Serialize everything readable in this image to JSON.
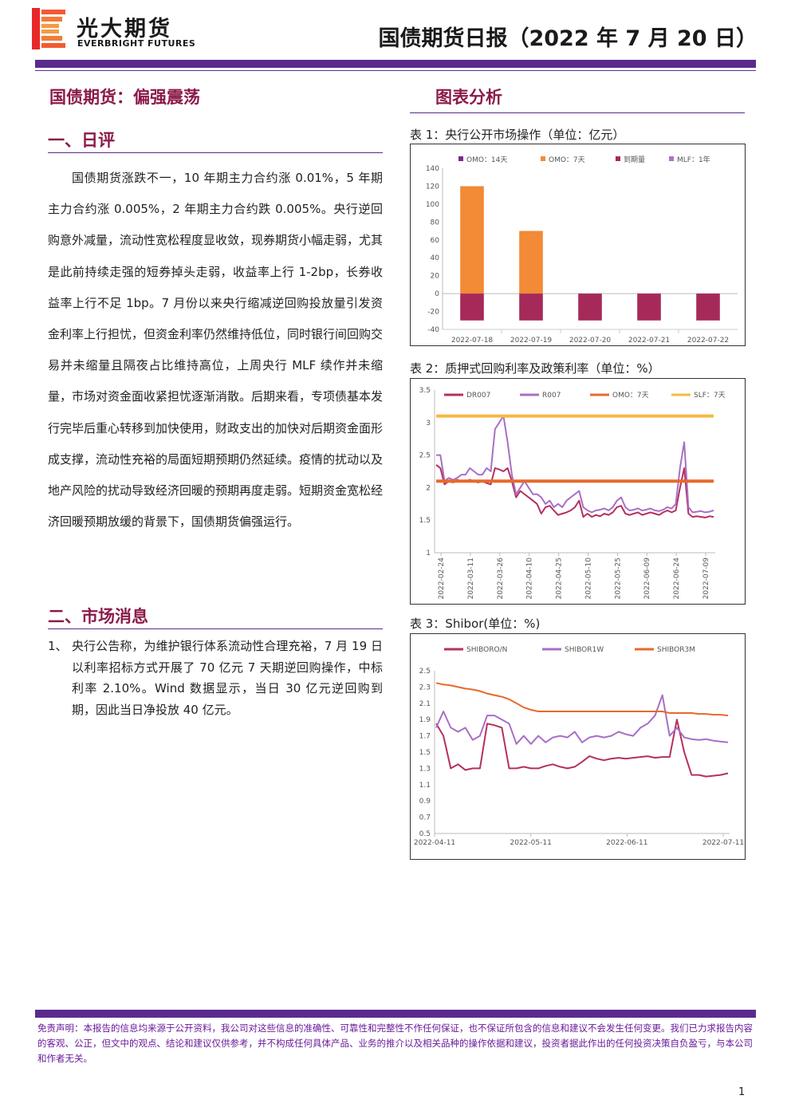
{
  "header": {
    "brand_cn": "光大期货",
    "brand_en": "EVERBRIGHT FUTURES",
    "report_title": "国债期货日报（2022 年 7 月 20 日）"
  },
  "left": {
    "headline": "国债期货：偏强震荡",
    "section1_title": "一、日评",
    "commentary": "国债期货涨跌不一，10 年期主力合约涨 0.01%，5 年期主力合约涨 0.005%，2 年期主力合约跌 0.005%。央行逆回购意外减量，流动性宽松程度显收敛，现券期货小幅走弱，尤其是此前持续走强的短券掉头走弱，收益率上行 1-2bp，长券收益率上行不足 1bp。7 月份以来央行缩减逆回购投放量引发资金利率上行担忧，但资金利率仍然维持低位，同时银行间回购交易并未缩量且隔夜占比维持高位，上周央行 MLF 续作并未缩量，市场对资金面收紧担忧逐渐消散。后期来看，专项债基本发行完毕后重心转移到加快使用，财政支出的加快对后期资金面形成支撑，流动性充裕的局面短期预期仍然延续。疫情的扰动以及地产风险的扰动导致经济回暖的预期再度走弱。短期资金宽松经济回暖预期放缓的背景下，国债期货偏强运行。",
    "section2_title": "二、市场消息",
    "news_num": "1、",
    "news_text": "央行公告称，为维护银行体系流动性合理充裕，7 月 19 日以利率招标方式开展了 70 亿元 7 天期逆回购操作，中标利率 2.10%。Wind 数据显示，当日 30 亿元逆回购到期，因此当日净投放 40 亿元。"
  },
  "right": {
    "title": "图表分析",
    "chart1_caption": "表 1：央行公开市场操作（单位：亿元）",
    "chart2_caption": "表 2：质押式回购利率及政策利率（单位：%）",
    "chart3_caption": "表 3：Shibor(单位：%)"
  },
  "chart_data": [
    {
      "type": "bar",
      "categories": [
        "2022-07-18",
        "2022-07-19",
        "2022-07-20",
        "2022-07-21",
        "2022-07-22"
      ],
      "series": [
        {
          "name": "OMO：14天",
          "color": "#7b2a8a",
          "values": [
            0,
            0,
            0,
            0,
            0
          ]
        },
        {
          "name": "OMO：7天",
          "color": "#f28a36",
          "values": [
            120,
            70,
            0,
            0,
            0
          ]
        },
        {
          "name": "到期量",
          "color": "#a52a5a",
          "values": [
            -30,
            -30,
            -30,
            -30,
            -30
          ]
        },
        {
          "name": "MLF：1年",
          "color": "#b06fc8",
          "values": [
            0,
            0,
            0,
            0,
            0
          ]
        }
      ],
      "ylim": [
        -40,
        140
      ],
      "yticks": [
        -40,
        -20,
        0,
        20,
        40,
        60,
        80,
        100,
        120,
        140
      ],
      "legend": "top"
    },
    {
      "type": "line",
      "x_ticks": [
        "2022-02-24",
        "2022-03-11",
        "2022-03-26",
        "2022-04-10",
        "2022-04-25",
        "2022-05-10",
        "2022-05-25",
        "2022-06-09",
        "2022-06-24",
        "2022-07-09"
      ],
      "ylim": [
        1,
        3.5
      ],
      "yticks": [
        1,
        1.5,
        2,
        2.5,
        3,
        3.5
      ],
      "series": [
        {
          "name": "DR007",
          "color": "#b5305f",
          "values": [
            2.35,
            2.3,
            2.05,
            2.1,
            2.08,
            2.12,
            2.1,
            2.1,
            2.12,
            2.1,
            2.08,
            2.1,
            2.07,
            2.05,
            2.3,
            2.28,
            2.25,
            2.3,
            2.1,
            1.85,
            1.95,
            1.9,
            1.85,
            1.8,
            1.75,
            1.6,
            1.7,
            1.72,
            1.65,
            1.58,
            1.6,
            1.62,
            1.65,
            1.7,
            1.8,
            1.55,
            1.6,
            1.55,
            1.58,
            1.56,
            1.6,
            1.58,
            1.62,
            1.7,
            1.72,
            1.6,
            1.58,
            1.6,
            1.62,
            1.58,
            1.6,
            1.62,
            1.6,
            1.58,
            1.62,
            1.65,
            1.62,
            1.65,
            2.0,
            2.3,
            1.6,
            1.55,
            1.56,
            1.55,
            1.54,
            1.56,
            1.55
          ]
        },
        {
          "name": "R007",
          "color": "#a86fc6",
          "values": [
            2.5,
            2.5,
            2.1,
            2.15,
            2.12,
            2.15,
            2.2,
            2.2,
            2.3,
            2.25,
            2.2,
            2.2,
            2.3,
            2.25,
            2.9,
            3.0,
            3.1,
            2.7,
            2.2,
            1.9,
            2.0,
            2.1,
            2.0,
            1.9,
            1.9,
            1.85,
            1.75,
            1.8,
            1.7,
            1.75,
            1.7,
            1.8,
            1.85,
            1.9,
            1.95,
            1.7,
            1.65,
            1.62,
            1.65,
            1.66,
            1.68,
            1.65,
            1.7,
            1.8,
            1.85,
            1.7,
            1.65,
            1.66,
            1.68,
            1.65,
            1.66,
            1.68,
            1.65,
            1.64,
            1.66,
            1.7,
            1.68,
            1.75,
            2.3,
            2.7,
            1.7,
            1.62,
            1.63,
            1.64,
            1.62,
            1.63,
            1.65
          ]
        },
        {
          "name": "OMO：7天",
          "color": "#e8692a",
          "values": [
            2.1,
            2.1
          ]
        },
        {
          "name": "SLF：7天",
          "color": "#f5b942",
          "values": [
            3.1,
            3.1
          ]
        }
      ],
      "legend": "top"
    },
    {
      "type": "line",
      "x_ticks": [
        "2022-04-11",
        "2022-05-11",
        "2022-06-11",
        "2022-07-11"
      ],
      "ylim": [
        0.5,
        2.5
      ],
      "yticks": [
        0.5,
        0.7,
        0.9,
        1.1,
        1.3,
        1.5,
        1.7,
        1.9,
        2.1,
        2.3,
        2.5
      ],
      "series": [
        {
          "name": "SHIBORO/N",
          "color": "#b5305f",
          "values": [
            1.85,
            1.7,
            1.3,
            1.35,
            1.28,
            1.3,
            1.3,
            1.85,
            1.83,
            1.8,
            1.3,
            1.3,
            1.32,
            1.3,
            1.3,
            1.33,
            1.35,
            1.32,
            1.3,
            1.32,
            1.38,
            1.45,
            1.42,
            1.4,
            1.42,
            1.43,
            1.42,
            1.43,
            1.44,
            1.45,
            1.43,
            1.44,
            1.44,
            1.9,
            1.5,
            1.22,
            1.22,
            1.2,
            1.21,
            1.22,
            1.24
          ]
        },
        {
          "name": "SHIBOR1W",
          "color": "#a86fc6",
          "values": [
            1.8,
            2.0,
            1.8,
            1.75,
            1.8,
            1.65,
            1.7,
            1.95,
            1.95,
            1.9,
            1.85,
            1.6,
            1.7,
            1.6,
            1.7,
            1.62,
            1.68,
            1.7,
            1.68,
            1.75,
            1.62,
            1.68,
            1.7,
            1.68,
            1.7,
            1.75,
            1.72,
            1.7,
            1.8,
            1.85,
            1.95,
            2.2,
            1.7,
            1.8,
            1.68,
            1.66,
            1.65,
            1.66,
            1.64,
            1.63,
            1.62
          ]
        },
        {
          "name": "SHIBOR3M",
          "color": "#e8692a",
          "values": [
            2.35,
            2.33,
            2.32,
            2.3,
            2.28,
            2.27,
            2.25,
            2.22,
            2.2,
            2.18,
            2.15,
            2.1,
            2.05,
            2.02,
            2.0,
            2.0,
            2.0,
            2.0,
            2.0,
            2.0,
            2.0,
            2.0,
            2.0,
            2.0,
            2.0,
            2.0,
            2.0,
            2.0,
            2.0,
            2.0,
            2.0,
            2.0,
            1.98,
            1.98,
            1.98,
            1.98,
            1.97,
            1.97,
            1.96,
            1.96,
            1.95
          ]
        }
      ],
      "legend": "top"
    }
  ],
  "footer": {
    "disclaimer": "免责声明：本报告的信息均来源于公开资料，我公司对这些信息的准确性、可靠性和完整性不作任何保证，也不保证所包含的信息和建议不会发生任何变更。我们已力求报告内容的客观、公正，但文中的观点、结论和建议仅供参考，并不构成任何具体产品、业务的推介以及相关品种的操作依据和建议，投资者据此作出的任何投资决策自负盈亏，与本公司和作者无关。",
    "page_number": "1"
  }
}
